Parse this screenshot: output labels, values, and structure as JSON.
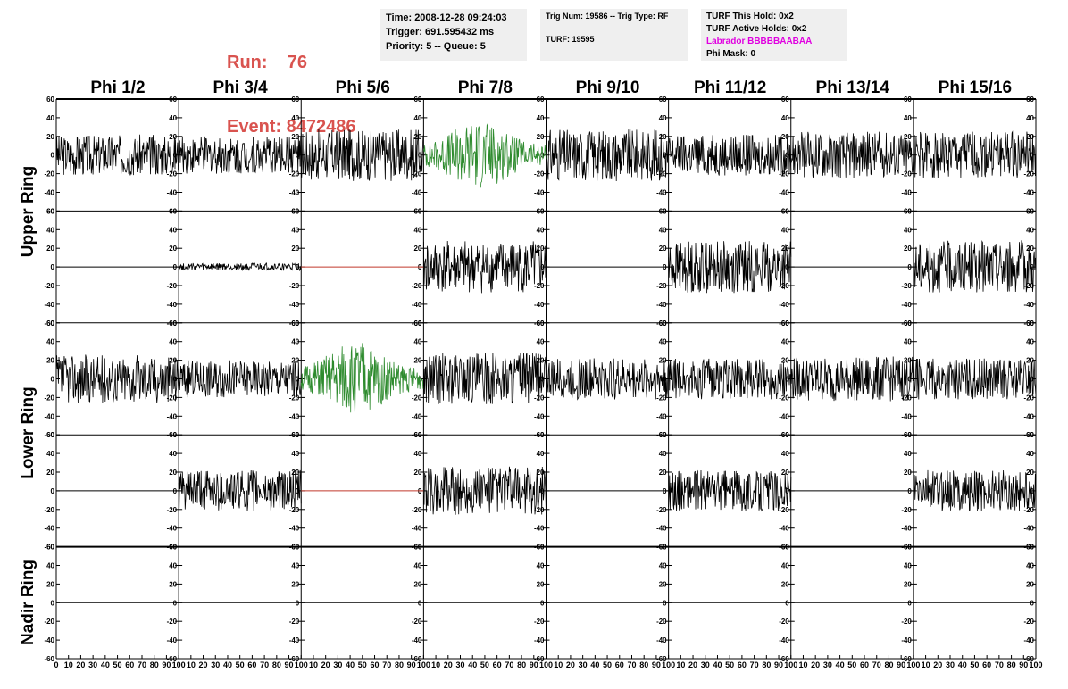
{
  "header": {
    "run_line": "Run:    76",
    "event_line": "Event: 8472486"
  },
  "info1": {
    "time": "Time: 2008-12-28 09:24:03",
    "trigger": "Trigger: 691.595432 ms",
    "priority": "Priority: 5 -- Queue: 5"
  },
  "info2": {
    "trig": "Trig Num: 19586 -- Trig Type: RF",
    "turf": "TURF: 19595"
  },
  "info3": {
    "this_hold": "TURF This Hold: 0x2",
    "active_holds": "TURF Active Holds: 0x2",
    "labrador": "Labrador BBBBBAABAA",
    "phi_mask": "Phi Mask: 0"
  },
  "columns": [
    "Phi 1/2",
    "Phi 3/4",
    "Phi 5/6",
    "Phi 7/8",
    "Phi 9/10",
    "Phi 11/12",
    "Phi 13/14",
    "Phi 15/16"
  ],
  "rows": [
    "Upper Ring",
    "Lower Ring",
    "Nadir Ring"
  ],
  "y_ticks": [
    "60",
    "40",
    "20",
    "0",
    "-20",
    "-40",
    "-60"
  ],
  "x_ticks": [
    "0",
    "10",
    "20",
    "30",
    "40",
    "50",
    "60",
    "70",
    "80",
    "90",
    "100"
  ],
  "colors": {
    "trace": "#000000",
    "triggered": "#2e8b2e",
    "flat_dead": "#c0392b",
    "run_text": "#d9534f",
    "labrador": "#e000e0"
  },
  "chart_data": {
    "type": "line",
    "xlim": [
      0,
      100
    ],
    "ylim": [
      -60,
      60
    ],
    "panels": [
      {
        "row": 0,
        "col": 0,
        "amp": 22,
        "style": "normal"
      },
      {
        "row": 0,
        "col": 1,
        "amp": 20,
        "style": "normal"
      },
      {
        "row": 0,
        "col": 2,
        "amp": 28,
        "style": "normal"
      },
      {
        "row": 0,
        "col": 3,
        "amp": 30,
        "style": "triggered"
      },
      {
        "row": 0,
        "col": 4,
        "amp": 28,
        "style": "normal"
      },
      {
        "row": 0,
        "col": 5,
        "amp": 22,
        "style": "normal"
      },
      {
        "row": 0,
        "col": 6,
        "amp": 25,
        "style": "normal"
      },
      {
        "row": 0,
        "col": 7,
        "amp": 25,
        "style": "normal"
      },
      {
        "row": 1,
        "col": 0,
        "amp": 0,
        "style": "flat"
      },
      {
        "row": 1,
        "col": 1,
        "amp": 4,
        "style": "normal"
      },
      {
        "row": 1,
        "col": 2,
        "amp": 0,
        "style": "dead"
      },
      {
        "row": 1,
        "col": 3,
        "amp": 28,
        "style": "normal"
      },
      {
        "row": 1,
        "col": 4,
        "amp": 0,
        "style": "flat"
      },
      {
        "row": 1,
        "col": 5,
        "amp": 28,
        "style": "normal"
      },
      {
        "row": 1,
        "col": 6,
        "amp": 0,
        "style": "flat"
      },
      {
        "row": 1,
        "col": 7,
        "amp": 28,
        "style": "normal"
      },
      {
        "row": 2,
        "col": 0,
        "amp": 26,
        "style": "normal"
      },
      {
        "row": 2,
        "col": 1,
        "amp": 20,
        "style": "normal"
      },
      {
        "row": 2,
        "col": 2,
        "amp": 32,
        "style": "triggered"
      },
      {
        "row": 2,
        "col": 3,
        "amp": 28,
        "style": "normal"
      },
      {
        "row": 2,
        "col": 4,
        "amp": 22,
        "style": "normal"
      },
      {
        "row": 2,
        "col": 5,
        "amp": 22,
        "style": "normal"
      },
      {
        "row": 2,
        "col": 6,
        "amp": 24,
        "style": "normal"
      },
      {
        "row": 2,
        "col": 7,
        "amp": 22,
        "style": "normal"
      },
      {
        "row": 3,
        "col": 0,
        "amp": 0,
        "style": "flat"
      },
      {
        "row": 3,
        "col": 1,
        "amp": 22,
        "style": "normal"
      },
      {
        "row": 3,
        "col": 2,
        "amp": 0,
        "style": "dead"
      },
      {
        "row": 3,
        "col": 3,
        "amp": 26,
        "style": "normal"
      },
      {
        "row": 3,
        "col": 4,
        "amp": 0,
        "style": "flat"
      },
      {
        "row": 3,
        "col": 5,
        "amp": 22,
        "style": "normal"
      },
      {
        "row": 3,
        "col": 6,
        "amp": 0,
        "style": "flat"
      },
      {
        "row": 3,
        "col": 7,
        "amp": 22,
        "style": "normal"
      },
      {
        "row": 4,
        "col": 0,
        "amp": 0,
        "style": "flat"
      },
      {
        "row": 4,
        "col": 1,
        "amp": 0,
        "style": "flat"
      },
      {
        "row": 4,
        "col": 2,
        "amp": 0,
        "style": "flat"
      },
      {
        "row": 4,
        "col": 3,
        "amp": 0,
        "style": "flat"
      },
      {
        "row": 4,
        "col": 4,
        "amp": 0,
        "style": "flat"
      },
      {
        "row": 4,
        "col": 5,
        "amp": 0,
        "style": "flat"
      },
      {
        "row": 4,
        "col": 6,
        "amp": 0,
        "style": "flat"
      },
      {
        "row": 4,
        "col": 7,
        "amp": 0,
        "style": "flat"
      }
    ]
  }
}
